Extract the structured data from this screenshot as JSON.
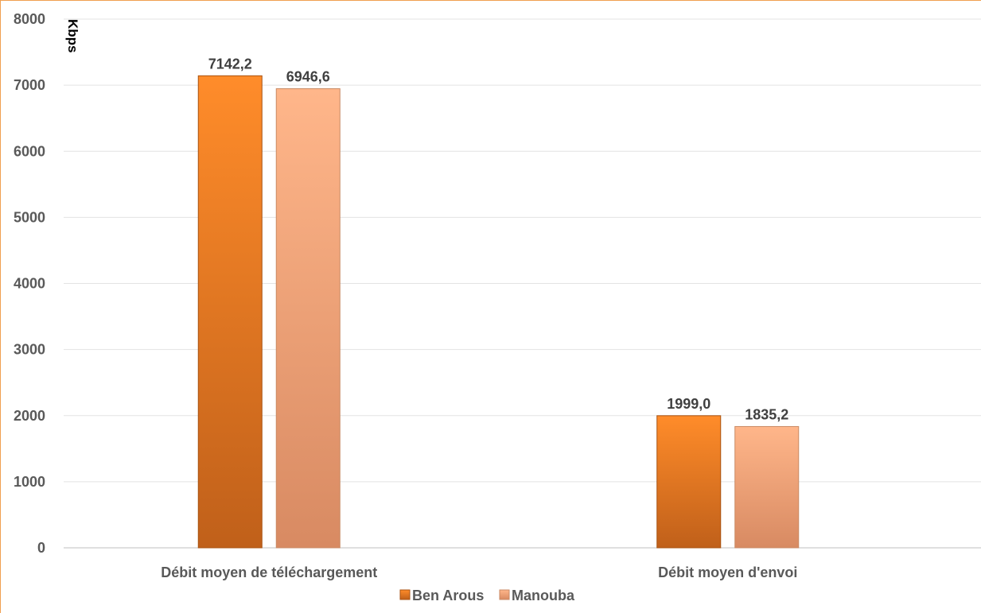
{
  "chart_data": {
    "type": "bar",
    "title": "",
    "xlabel": "",
    "ylabel": "Kbps",
    "ylim": [
      0,
      8000
    ],
    "yticks": [
      0,
      1000,
      2000,
      3000,
      4000,
      5000,
      6000,
      7000,
      8000
    ],
    "categories": [
      "Débit moyen de téléchargement",
      "Débit moyen d'envoi"
    ],
    "series": [
      {
        "name": "Ben Arous",
        "values": [
          7142.2,
          1999.0
        ],
        "labels": [
          "7142,2",
          "1999,0"
        ],
        "color": "#e87d1e"
      },
      {
        "name": "Manouba",
        "values": [
          6946.6,
          1835.2
        ],
        "labels": [
          "6946,6",
          "1835,2"
        ],
        "color": "#f4ab7c"
      }
    ],
    "grid": true,
    "legend": "bottom-center"
  }
}
